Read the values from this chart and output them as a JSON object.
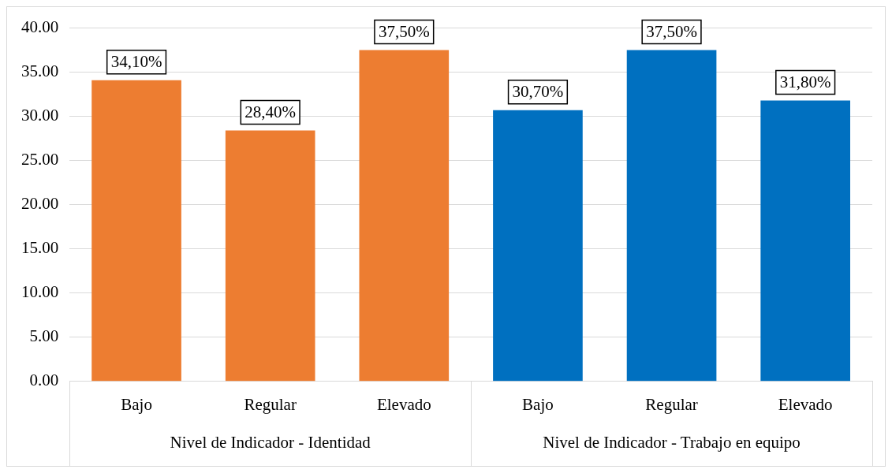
{
  "chart_data": {
    "type": "bar",
    "categories": [
      "Bajo",
      "Regular",
      "Elevado",
      "Bajo",
      "Regular",
      "Elevado"
    ],
    "values": [
      34.1,
      28.4,
      37.5,
      30.7,
      37.5,
      31.8
    ],
    "colors": [
      "#ed7d31",
      "#ed7d31",
      "#ed7d31",
      "#0070c0",
      "#0070c0",
      "#0070c0"
    ],
    "value_labels": [
      "34,10%",
      "28,40%",
      "37,50%",
      "30,70%",
      "37,50%",
      "31,80%"
    ],
    "ylim": [
      0,
      40
    ],
    "yticks": [
      {
        "value": 0,
        "label": "0.00"
      },
      {
        "value": 5,
        "label": "5.00"
      },
      {
        "value": 10,
        "label": "10.00"
      },
      {
        "value": 15,
        "label": "15.00"
      },
      {
        "value": 20,
        "label": "20.00"
      },
      {
        "value": 25,
        "label": "25.00"
      },
      {
        "value": 30,
        "label": "30.00"
      },
      {
        "value": 35,
        "label": "35.00"
      },
      {
        "value": 40,
        "label": "40.00"
      }
    ],
    "annotations": [
      "Nivel de Indicador - Identidad",
      "Nivel de Indicador - Trabajo en equipo"
    ],
    "grid": "y",
    "legend": false
  }
}
